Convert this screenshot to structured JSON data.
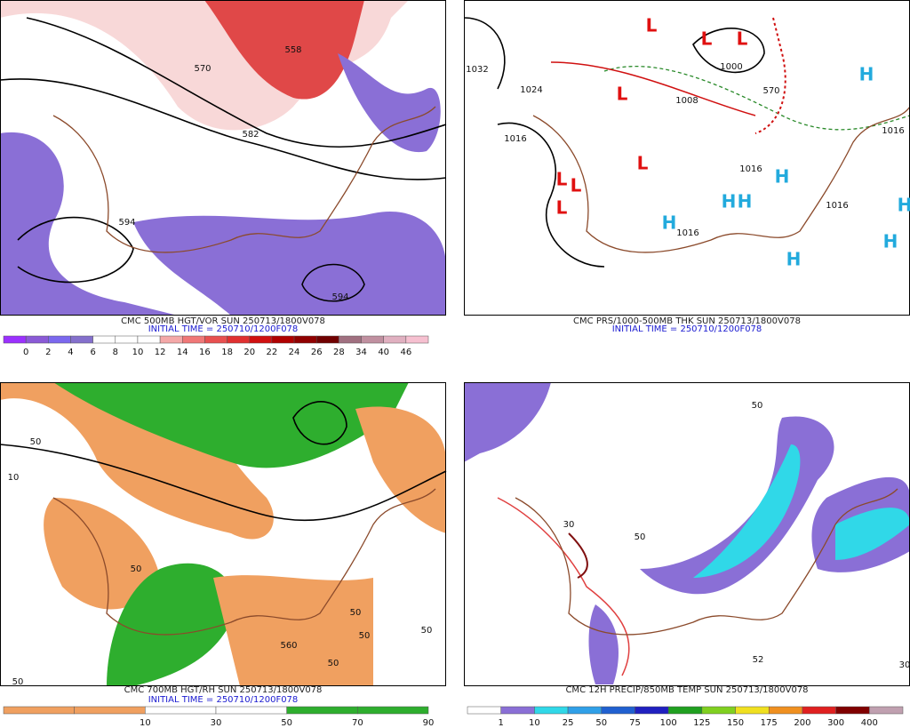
{
  "panels": [
    {
      "caption": "CMC 500MB HGT/VOR SUN 250713/1800V078",
      "initial_time": "INITIAL TIME = 250710/1200F078",
      "colorbar": [
        0,
        2,
        4,
        6,
        8,
        10,
        12,
        14,
        16,
        18,
        20,
        22,
        24,
        26,
        28,
        34,
        40,
        46
      ],
      "labels": [
        "570",
        "582",
        "594",
        "594",
        "558"
      ]
    },
    {
      "caption": "CMC PRS/1000-500MB THK SUN 250713/1800V078",
      "initial_time": "INITIAL TIME = 250710/1200F078",
      "lows": [
        "L",
        "L",
        "L",
        "L",
        "L",
        "L",
        "L",
        "L"
      ],
      "highs": [
        "H",
        "H",
        "H",
        "H",
        "H",
        "H",
        "H",
        "H"
      ],
      "labels": [
        "1032",
        "1024",
        "1016",
        "1000",
        "1008",
        "570",
        "1016",
        "1016",
        "1016",
        "1016"
      ]
    },
    {
      "caption": "CMC 700MB HGT/RH SUN 250713/1800V078",
      "initial_time": "INITIAL TIME = 250710/1200F078",
      "colorbar": [
        10,
        30,
        50,
        70,
        90
      ],
      "labels": [
        "50",
        "10",
        "50",
        "50",
        "50",
        "50",
        "50",
        "560",
        "50"
      ]
    },
    {
      "caption": "CMC 12H PRECIP/850MB TEMP SUN 250713/1800V078",
      "colorbar": [
        1,
        10,
        25,
        50,
        75,
        100,
        125,
        150,
        175,
        200,
        300,
        400
      ],
      "labels": [
        "50",
        "30",
        "50",
        "52",
        "30"
      ]
    }
  ]
}
